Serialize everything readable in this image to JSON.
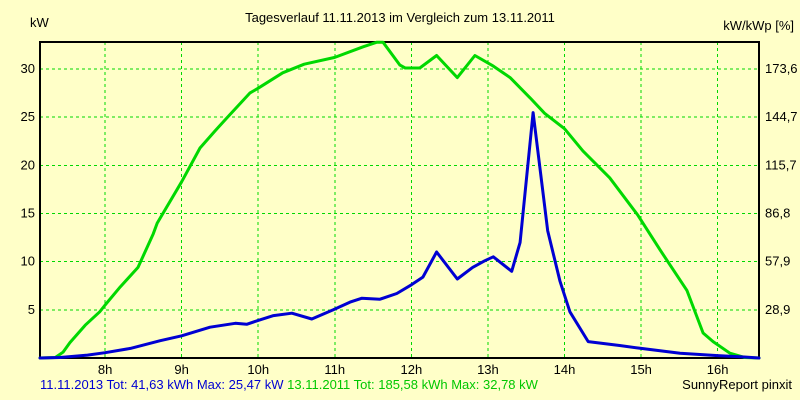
{
  "header": {
    "title": "Tagesverlauf 11.11.2013 im Vergleich zum 13.11.2011",
    "left_axis_unit": "kW",
    "right_axis_unit": "kW/kWp [%]"
  },
  "footer": {
    "legend_2013": "11.11.2013 Tot: 41,63 kWh Max: 25,47 kW",
    "legend_2011": "13.11.2011 Tot: 185,58 kWh Max: 32,78 kW",
    "watermark": "SunnyReport pinxit"
  },
  "colors": {
    "background": "#ffffc8",
    "grid": "#00d800",
    "frame": "#000000",
    "series_2011": "#00d800",
    "series_2013": "#0000d2"
  },
  "chart_data": {
    "type": "line",
    "title": "Tagesverlauf 11.11.2013 im Vergleich zum 13.11.2011",
    "grid": true,
    "legend_position": "bottom",
    "left_axis": {
      "unit": "kW",
      "ticks": [
        5,
        10,
        15,
        20,
        25,
        30
      ],
      "range": [
        0,
        32.8
      ]
    },
    "right_axis": {
      "unit": "kW/kWp [%]",
      "tick_labels": [
        "28,9",
        "57,9",
        "86,8",
        "115,7",
        "144,7",
        "173,6"
      ]
    },
    "x_axis": {
      "unit": "hour of day",
      "t_range": [
        7.15,
        16.54
      ],
      "hours": [
        8,
        9,
        10,
        11,
        12,
        13,
        14,
        15,
        16
      ],
      "labels": [
        "8h",
        "9h",
        "10h",
        "11h",
        "12h",
        "13h",
        "14h",
        "15h",
        "16h"
      ]
    },
    "series": [
      {
        "name": "13.11.2011",
        "color": "#00d800",
        "total_kwh": "185,58",
        "max_kw": "32,78",
        "points": [
          [
            7.15,
            0
          ],
          [
            7.35,
            0.05
          ],
          [
            7.45,
            0.6
          ],
          [
            7.54,
            1.6
          ],
          [
            7.74,
            3.4
          ],
          [
            7.93,
            4.8
          ],
          [
            8.0,
            5.5
          ],
          [
            8.2,
            7.4
          ],
          [
            8.43,
            9.4
          ],
          [
            8.63,
            12.9
          ],
          [
            8.68,
            14.0
          ],
          [
            9.0,
            18.3
          ],
          [
            9.24,
            21.8
          ],
          [
            9.44,
            23.6
          ],
          [
            9.6,
            25.0
          ],
          [
            9.89,
            27.5
          ],
          [
            10.0,
            28.0
          ],
          [
            10.32,
            29.6
          ],
          [
            10.6,
            30.5
          ],
          [
            11.0,
            31.2
          ],
          [
            11.37,
            32.3
          ],
          [
            11.55,
            32.78
          ],
          [
            11.63,
            32.78
          ],
          [
            11.85,
            30.4
          ],
          [
            11.92,
            30.1
          ],
          [
            12.11,
            30.1
          ],
          [
            12.33,
            31.4
          ],
          [
            12.6,
            29.1
          ],
          [
            12.83,
            31.4
          ],
          [
            13.07,
            30.3
          ],
          [
            13.29,
            29.1
          ],
          [
            13.55,
            27.0
          ],
          [
            13.74,
            25.4
          ],
          [
            14.0,
            23.8
          ],
          [
            14.24,
            21.5
          ],
          [
            14.59,
            18.7
          ],
          [
            14.96,
            14.8
          ],
          [
            15.25,
            11.2
          ],
          [
            15.6,
            7.0
          ],
          [
            15.81,
            2.6
          ],
          [
            15.94,
            1.7
          ],
          [
            16.16,
            0.5
          ],
          [
            16.35,
            0.05
          ],
          [
            16.54,
            0
          ]
        ]
      },
      {
        "name": "11.11.2013",
        "color": "#0000d2",
        "total_kwh": "41,63",
        "max_kw": "25,47",
        "points": [
          [
            7.15,
            0
          ],
          [
            7.41,
            0.05
          ],
          [
            7.77,
            0.3
          ],
          [
            8.0,
            0.55
          ],
          [
            8.33,
            1.0
          ],
          [
            8.72,
            1.8
          ],
          [
            9.0,
            2.3
          ],
          [
            9.37,
            3.2
          ],
          [
            9.7,
            3.6
          ],
          [
            9.85,
            3.5
          ],
          [
            10.0,
            3.9
          ],
          [
            10.2,
            4.4
          ],
          [
            10.44,
            4.65
          ],
          [
            10.7,
            4.05
          ],
          [
            10.98,
            5.0
          ],
          [
            11.2,
            5.8
          ],
          [
            11.35,
            6.2
          ],
          [
            11.59,
            6.1
          ],
          [
            11.81,
            6.7
          ],
          [
            12.0,
            7.6
          ],
          [
            12.15,
            8.4
          ],
          [
            12.33,
            11.0
          ],
          [
            12.6,
            8.2
          ],
          [
            12.8,
            9.4
          ],
          [
            12.96,
            10.1
          ],
          [
            13.07,
            10.5
          ],
          [
            13.31,
            9.0
          ],
          [
            13.42,
            12.0
          ],
          [
            13.59,
            25.47
          ],
          [
            13.78,
            13.2
          ],
          [
            13.94,
            8.0
          ],
          [
            14.07,
            4.8
          ],
          [
            14.31,
            1.7
          ],
          [
            14.72,
            1.3
          ],
          [
            15.0,
            1.0
          ],
          [
            15.51,
            0.5
          ],
          [
            16.0,
            0.25
          ],
          [
            16.35,
            0.1
          ],
          [
            16.54,
            0
          ]
        ]
      }
    ]
  }
}
